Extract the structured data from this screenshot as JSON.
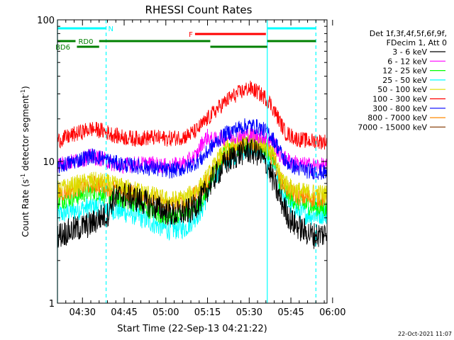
{
  "chart_data": {
    "type": "line",
    "title": "RHESSI Count Rates",
    "xlabel": "Start Time (22-Sep-13 04:21:22)",
    "ylabel_parts": {
      "main": "Count Rate (s",
      "exp": "-1",
      "mid": " detector segment",
      "exp2": "-1",
      "end": ")"
    },
    "y_scale": "log",
    "ylim": [
      1,
      100
    ],
    "y_ticks": [
      {
        "value": 1,
        "label": "1"
      },
      {
        "value": 10,
        "label": "10"
      },
      {
        "value": 100,
        "label": "100"
      }
    ],
    "x_range_min": [
      0,
      97
    ],
    "x_ticks": [
      {
        "min": 9,
        "label": "04:30"
      },
      {
        "min": 24,
        "label": "04:45"
      },
      {
        "min": 39,
        "label": "05:00"
      },
      {
        "min": 54,
        "label": "05:15"
      },
      {
        "min": 69,
        "label": "05:30"
      },
      {
        "min": 84,
        "label": "05:45"
      },
      {
        "min": 99,
        "label": "06:00"
      }
    ],
    "legend": {
      "placement": "right",
      "header": [
        "Det 1f,3f,4f,5f,6f,9f,",
        "FDecim 1, Att 0"
      ],
      "entries": [
        {
          "label": "3 - 6 keV",
          "color": "#000000"
        },
        {
          "label": "6 - 12 keV",
          "color": "#ff00ff"
        },
        {
          "label": "12 - 25 keV",
          "color": "#00ff00"
        },
        {
          "label": "25 - 50 keV",
          "color": "#00ffff"
        },
        {
          "label": "50 - 100 keV",
          "color": "#dddd00"
        },
        {
          "label": "100 - 300 keV",
          "color": "#ff0000"
        },
        {
          "label": "300 - 800 keV",
          "color": "#0000ff"
        },
        {
          "label": "800 - 7000 keV",
          "color": "#ff8800"
        },
        {
          "label": "7000 - 15000 keV",
          "color": "#8b4513"
        }
      ]
    },
    "series_order": [
      3,
      2,
      7,
      4,
      0,
      1,
      6,
      5
    ],
    "series": [
      {
        "ref": 0,
        "noise": 0.1,
        "points": [
          [
            0,
            3.0
          ],
          [
            6,
            3.3
          ],
          [
            12,
            3.6
          ],
          [
            16,
            4.1
          ],
          [
            18,
            4.2
          ],
          [
            20,
            5.5
          ],
          [
            24,
            5.8
          ],
          [
            30,
            5.3
          ],
          [
            36,
            4.7
          ],
          [
            42,
            4.2
          ],
          [
            48,
            4.5
          ],
          [
            52,
            5.5
          ],
          [
            56,
            7.5
          ],
          [
            60,
            9.5
          ],
          [
            64,
            11.0
          ],
          [
            68,
            12.0
          ],
          [
            72,
            11.5
          ],
          [
            76,
            9.0
          ],
          [
            80,
            5.5
          ],
          [
            84,
            3.8
          ],
          [
            88,
            3.3
          ],
          [
            92,
            3.0
          ],
          [
            97,
            3.1
          ]
        ]
      },
      {
        "ref": 1,
        "noise": 0.06,
        "points": [
          [
            0,
            9.5
          ],
          [
            6,
            10.0
          ],
          [
            12,
            10.8
          ],
          [
            16,
            10.5
          ],
          [
            18,
            10.0
          ],
          [
            22,
            9.3
          ],
          [
            28,
            9.6
          ],
          [
            34,
            9.6
          ],
          [
            40,
            9.2
          ],
          [
            46,
            9.8
          ],
          [
            50,
            11.0
          ],
          [
            52,
            13.5
          ],
          [
            54,
            15.0
          ],
          [
            56,
            14.0
          ],
          [
            58,
            14.5
          ],
          [
            62,
            15.0
          ],
          [
            66,
            15.5
          ],
          [
            70,
            15.5
          ],
          [
            74,
            15.0
          ],
          [
            78,
            13.5
          ],
          [
            80,
            11.0
          ],
          [
            84,
            10.0
          ],
          [
            88,
            9.5
          ],
          [
            92,
            9.4
          ],
          [
            97,
            9.3
          ]
        ]
      },
      {
        "ref": 2,
        "noise": 0.07,
        "points": [
          [
            0,
            5.3
          ],
          [
            6,
            5.6
          ],
          [
            12,
            6.2
          ],
          [
            16,
            6.0
          ],
          [
            18,
            5.8
          ],
          [
            22,
            5.5
          ],
          [
            28,
            5.1
          ],
          [
            34,
            4.5
          ],
          [
            40,
            4.0
          ],
          [
            46,
            4.3
          ],
          [
            52,
            5.3
          ],
          [
            56,
            8.0
          ],
          [
            60,
            11.5
          ],
          [
            66,
            13.0
          ],
          [
            70,
            13.2
          ],
          [
            74,
            12.8
          ],
          [
            78,
            10.5
          ],
          [
            80,
            7.0
          ],
          [
            84,
            5.5
          ],
          [
            88,
            5.0
          ],
          [
            92,
            4.8
          ],
          [
            97,
            4.6
          ]
        ]
      },
      {
        "ref": 3,
        "noise": 0.08,
        "points": [
          [
            0,
            4.2
          ],
          [
            6,
            4.5
          ],
          [
            12,
            4.8
          ],
          [
            16,
            4.9
          ],
          [
            18,
            4.7
          ],
          [
            22,
            4.5
          ],
          [
            28,
            4.2
          ],
          [
            34,
            3.7
          ],
          [
            40,
            3.3
          ],
          [
            46,
            3.4
          ],
          [
            52,
            4.6
          ],
          [
            56,
            7.5
          ],
          [
            60,
            10.0
          ],
          [
            66,
            12.0
          ],
          [
            70,
            12.3
          ],
          [
            74,
            11.8
          ],
          [
            78,
            9.5
          ],
          [
            80,
            6.5
          ],
          [
            84,
            4.8
          ],
          [
            88,
            4.3
          ],
          [
            92,
            4.2
          ],
          [
            97,
            4.3
          ]
        ]
      },
      {
        "ref": 4,
        "noise": 0.07,
        "points": [
          [
            0,
            6.3
          ],
          [
            6,
            6.8
          ],
          [
            12,
            7.3
          ],
          [
            16,
            7.2
          ],
          [
            18,
            7.0
          ],
          [
            22,
            6.7
          ],
          [
            28,
            6.3
          ],
          [
            34,
            5.8
          ],
          [
            40,
            5.3
          ],
          [
            46,
            5.5
          ],
          [
            52,
            6.8
          ],
          [
            56,
            9.0
          ],
          [
            60,
            12.0
          ],
          [
            66,
            14.0
          ],
          [
            70,
            14.5
          ],
          [
            74,
            13.5
          ],
          [
            78,
            11.0
          ],
          [
            80,
            8.0
          ],
          [
            84,
            6.5
          ],
          [
            88,
            6.1
          ],
          [
            92,
            6.0
          ],
          [
            97,
            5.9
          ]
        ]
      },
      {
        "ref": 5,
        "noise": 0.06,
        "points": [
          [
            0,
            14.0
          ],
          [
            6,
            15.5
          ],
          [
            12,
            17.0
          ],
          [
            16,
            16.5
          ],
          [
            18,
            16.0
          ],
          [
            22,
            15.0
          ],
          [
            28,
            14.5
          ],
          [
            34,
            14.8
          ],
          [
            40,
            14.5
          ],
          [
            46,
            15.0
          ],
          [
            50,
            16.5
          ],
          [
            54,
            20.0
          ],
          [
            58,
            24.0
          ],
          [
            62,
            28.0
          ],
          [
            66,
            31.0
          ],
          [
            69,
            33.0
          ],
          [
            72,
            31.0
          ],
          [
            76,
            27.0
          ],
          [
            79,
            21.0
          ],
          [
            82,
            16.0
          ],
          [
            86,
            14.5
          ],
          [
            90,
            14.0
          ],
          [
            97,
            13.8
          ]
        ]
      },
      {
        "ref": 6,
        "noise": 0.06,
        "points": [
          [
            0,
            9.2
          ],
          [
            6,
            10.0
          ],
          [
            12,
            11.0
          ],
          [
            16,
            10.6
          ],
          [
            18,
            10.2
          ],
          [
            22,
            9.6
          ],
          [
            28,
            9.3
          ],
          [
            34,
            9.0
          ],
          [
            40,
            8.6
          ],
          [
            46,
            9.0
          ],
          [
            52,
            10.5
          ],
          [
            56,
            13.0
          ],
          [
            60,
            15.5
          ],
          [
            66,
            17.5
          ],
          [
            69,
            18.0
          ],
          [
            72,
            17.5
          ],
          [
            76,
            16.0
          ],
          [
            79,
            13.0
          ],
          [
            82,
            10.0
          ],
          [
            86,
            9.0
          ],
          [
            90,
            8.6
          ],
          [
            97,
            8.3
          ]
        ]
      },
      {
        "ref": 7,
        "noise": 0.07,
        "points": [
          [
            0,
            5.9
          ],
          [
            6,
            6.4
          ],
          [
            12,
            6.9
          ],
          [
            16,
            6.8
          ],
          [
            18,
            6.6
          ],
          [
            22,
            6.3
          ],
          [
            28,
            5.9
          ],
          [
            34,
            5.4
          ],
          [
            40,
            4.9
          ],
          [
            46,
            5.1
          ],
          [
            52,
            6.3
          ],
          [
            56,
            8.5
          ],
          [
            60,
            11.0
          ],
          [
            66,
            13.0
          ],
          [
            70,
            13.5
          ],
          [
            74,
            12.8
          ],
          [
            78,
            10.5
          ],
          [
            80,
            7.5
          ],
          [
            84,
            6.0
          ],
          [
            88,
            5.6
          ],
          [
            92,
            5.5
          ],
          [
            97,
            5.5
          ]
        ]
      }
    ],
    "vertical_markers": [
      {
        "min": 0,
        "style": "solid",
        "color": "#00ffff"
      },
      {
        "min": 17.5,
        "style": "dashed",
        "color": "#00ffff"
      },
      {
        "min": 75.5,
        "style": "solid",
        "color": "#00ffff"
      },
      {
        "min": 93,
        "style": "dashed",
        "color": "#00ffff"
      }
    ],
    "flag_bars": [
      {
        "label": "N",
        "color": "#00ffff",
        "y": 40,
        "segments": [
          [
            0,
            17.5
          ],
          [
            75.5,
            93
          ]
        ]
      },
      {
        "label": "F",
        "color": "#ff0000",
        "y": 48,
        "segments": [
          [
            49.5,
            75
          ]
        ]
      },
      {
        "label": "RD0",
        "color": "#008000",
        "y": 58,
        "segments": [
          [
            0,
            6.5
          ],
          [
            15,
            55
          ],
          [
            75.5,
            93
          ]
        ]
      },
      {
        "label": "BD6",
        "color": "#008000",
        "y": 66,
        "segments": [
          [
            7,
            15
          ],
          [
            55,
            75.5
          ]
        ]
      }
    ]
  },
  "footer_timestamp": "22-Oct-2021 11:07"
}
